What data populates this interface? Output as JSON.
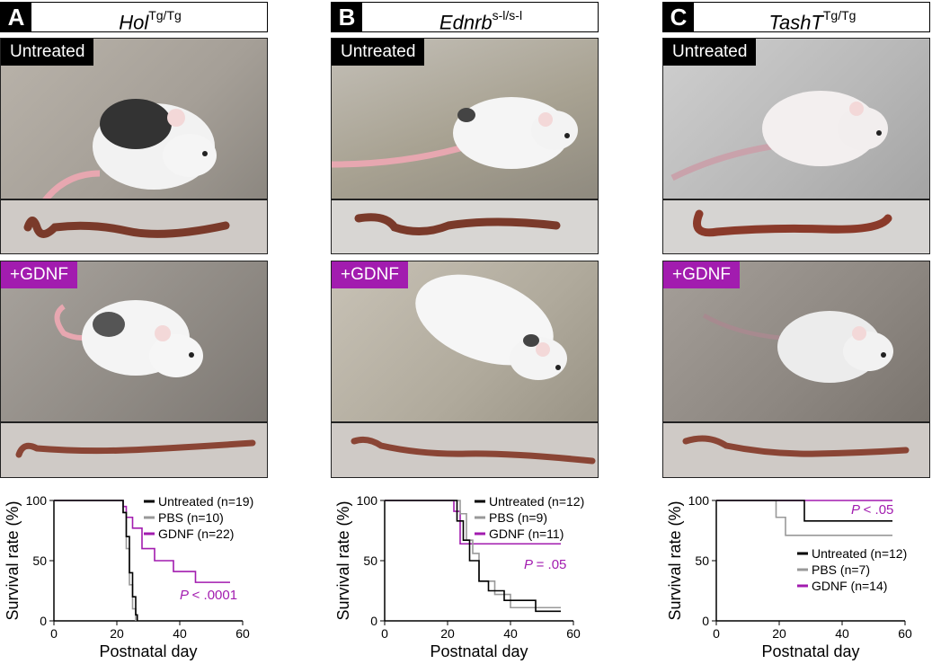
{
  "panels": [
    {
      "letter": "A",
      "gene": "Hol",
      "genotype": "Tg/Tg",
      "untreated_label": "Untreated",
      "gdnf_label": "+GDNF",
      "photo_untreated_alt": "Untreated Hol Tg/Tg mouse with black patch on head",
      "photo_gdnf_alt": "GDNF-treated Hol Tg/Tg mouse",
      "chart_data": {
        "type": "line",
        "title": "",
        "xlabel": "Postnatal day",
        "ylabel": "Survival rate (%)",
        "xlim": [
          0,
          60
        ],
        "ylim": [
          0,
          100
        ],
        "xticks": [
          "0",
          "20",
          "40",
          "60"
        ],
        "yticks": [
          "0",
          "50",
          "100"
        ],
        "legend": [
          {
            "label": "Untreated",
            "n": "(n=19)",
            "color": "#000000"
          },
          {
            "label": "PBS",
            "n": "(n=10)",
            "color": "#999999"
          },
          {
            "label": "GDNF",
            "n": "(n=22)",
            "color": "#a21caf"
          }
        ],
        "legend_position": "top-right",
        "annotation": {
          "p": "P",
          "text": "< .0001",
          "color": "#a21caf"
        },
        "series": [
          {
            "name": "Untreated",
            "color": "#000000",
            "x": [
              0,
              20,
              22,
              23,
              24,
              25,
              26,
              26.5
            ],
            "y": [
              100,
              100,
              90,
              70,
              40,
              20,
              5,
              0
            ]
          },
          {
            "name": "PBS",
            "color": "#999999",
            "x": [
              0,
              21,
              22,
              23,
              24,
              25,
              26
            ],
            "y": [
              100,
              100,
              90,
              60,
              30,
              10,
              0
            ]
          },
          {
            "name": "GDNF",
            "color": "#a21caf",
            "x": [
              0,
              20,
              22,
              23,
              25,
              28,
              32,
              38,
              45,
              56
            ],
            "y": [
              100,
              100,
              95,
              86,
              77,
              60,
              50,
              41,
              32,
              32
            ]
          }
        ]
      }
    },
    {
      "letter": "B",
      "gene": "Ednrb",
      "genotype": "s-l/s-l",
      "untreated_label": "Untreated",
      "gdnf_label": "+GDNF",
      "photo_untreated_alt": "Untreated Ednrb s-l/s-l white mouse",
      "photo_gdnf_alt": "GDNF-treated Ednrb s-l/s-l white mouse",
      "chart_data": {
        "type": "line",
        "title": "",
        "xlabel": "Postnatal day",
        "ylabel": "Survival rate (%)",
        "xlim": [
          0,
          60
        ],
        "ylim": [
          0,
          100
        ],
        "xticks": [
          "0",
          "20",
          "40",
          "60"
        ],
        "yticks": [
          "0",
          "50",
          "100"
        ],
        "legend": [
          {
            "label": "Untreated",
            "n": "(n=12)",
            "color": "#000000"
          },
          {
            "label": "PBS",
            "n": "(n=9)",
            "color": "#999999"
          },
          {
            "label": "GDNF",
            "n": "(n=11)",
            "color": "#a21caf"
          }
        ],
        "legend_position": "top-right",
        "annotation": {
          "p": "P",
          "text": "= .05",
          "color": "#a21caf"
        },
        "series": [
          {
            "name": "Untreated",
            "color": "#000000",
            "x": [
              0,
              21,
              23,
              25,
              27,
              30,
              33,
              38,
              48,
              56
            ],
            "y": [
              100,
              100,
              83,
              67,
              50,
              33,
              25,
              17,
              8,
              8
            ]
          },
          {
            "name": "PBS",
            "color": "#999999",
            "x": [
              0,
              22,
              24,
              26,
              28,
              30,
              35,
              40,
              56
            ],
            "y": [
              100,
              100,
              89,
              67,
              56,
              33,
              22,
              11,
              11
            ]
          },
          {
            "name": "GDNF",
            "color": "#a21caf",
            "x": [
              0,
              20,
              22,
              24,
              56
            ],
            "y": [
              100,
              100,
              91,
              64,
              64
            ]
          }
        ]
      }
    },
    {
      "letter": "C",
      "gene": "TashT",
      "genotype": "Tg/Tg",
      "untreated_label": "Untreated",
      "gdnf_label": "+GDNF",
      "photo_untreated_alt": "Untreated TashT Tg/Tg mouse",
      "photo_gdnf_alt": "GDNF-treated TashT Tg/Tg mouse",
      "chart_data": {
        "type": "line",
        "title": "",
        "xlabel": "Postnatal day",
        "ylabel": "Survival rate (%)",
        "xlim": [
          0,
          60
        ],
        "ylim": [
          0,
          100
        ],
        "xticks": [
          "0",
          "20",
          "40",
          "60"
        ],
        "yticks": [
          "0",
          "50",
          "100"
        ],
        "legend": [
          {
            "label": "Untreated",
            "n": "(n=12)",
            "color": "#000000"
          },
          {
            "label": "PBS",
            "n": "(n=7)",
            "color": "#999999"
          },
          {
            "label": "GDNF",
            "n": "(n=14)",
            "color": "#a21caf"
          }
        ],
        "legend_position": "bottom-right",
        "annotation": {
          "p": "P",
          "text": "< .05",
          "color": "#a21caf"
        },
        "series": [
          {
            "name": "Untreated",
            "color": "#000000",
            "x": [
              0,
              26,
              28,
              56
            ],
            "y": [
              100,
              100,
              83,
              83
            ]
          },
          {
            "name": "PBS",
            "color": "#999999",
            "x": [
              0,
              19,
              22,
              56
            ],
            "y": [
              100,
              86,
              71,
              71
            ]
          },
          {
            "name": "GDNF",
            "color": "#a21caf",
            "x": [
              0,
              56
            ],
            "y": [
              100,
              100
            ]
          }
        ]
      }
    }
  ]
}
